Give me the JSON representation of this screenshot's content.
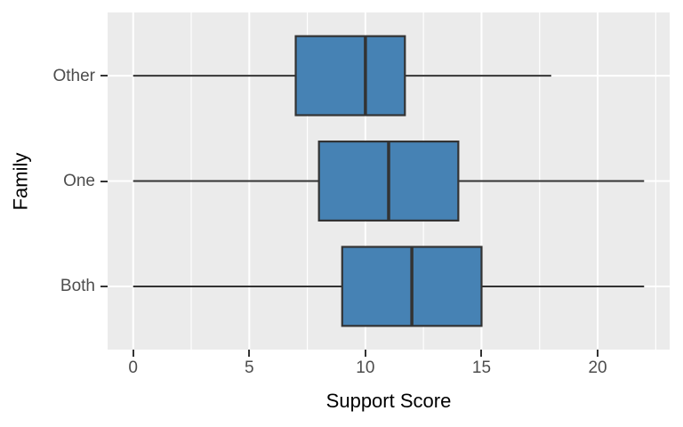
{
  "figure": {
    "background": "#FFFFFF",
    "panel_background": "#EBEBEB",
    "grid_color": "#FFFFFF",
    "axis_text_color": "#4D4D4D",
    "axis_title_color": "#000000",
    "tick_mark_color": "#333333",
    "box_fill": "#4682B4",
    "box_stroke": "#333333"
  },
  "chart_data": {
    "type": "boxplot",
    "orientation": "horizontal",
    "title": "",
    "xlabel": "Support Score",
    "ylabel": "Family",
    "categories": [
      "Other",
      "One",
      "Both"
    ],
    "series": [
      {
        "name": "Other",
        "min": 0,
        "q1": 7,
        "median": 10,
        "q3": 11.7,
        "max": 18
      },
      {
        "name": "One",
        "min": 0,
        "q1": 8,
        "median": 11,
        "q3": 14,
        "max": 22
      },
      {
        "name": "Both",
        "min": 0,
        "q1": 9,
        "median": 12,
        "q3": 15,
        "max": 22
      }
    ],
    "xlim": [
      -1.1,
      23.1
    ],
    "x_major_ticks": [
      0,
      5,
      10,
      15,
      20
    ],
    "x_tick_labels": [
      "0",
      "5",
      "10",
      "15",
      "20"
    ],
    "x_minor_ticks": [
      2.5,
      7.5,
      12.5,
      17.5,
      22.5
    ],
    "grid": true,
    "legend_position": "none",
    "box_width_fraction": 0.75,
    "y_expand_units": 0.6
  }
}
